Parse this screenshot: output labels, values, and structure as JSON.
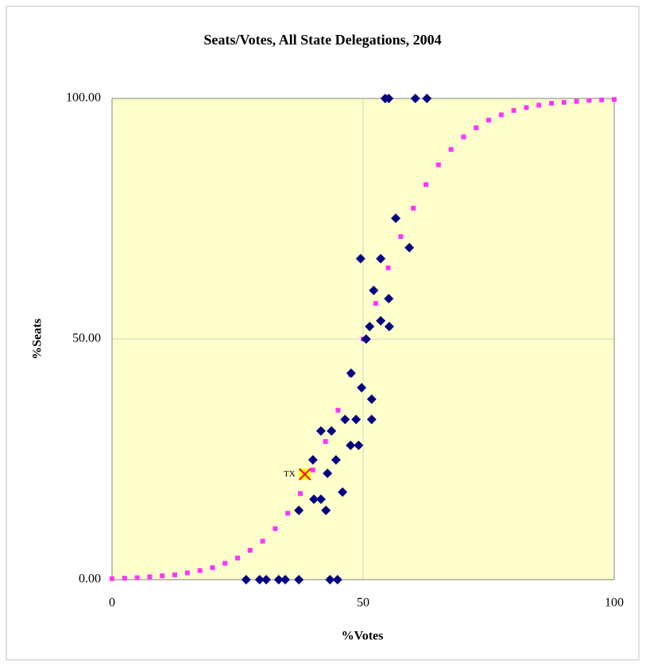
{
  "chart_data": {
    "type": "scatter",
    "title": "Seats/Votes, All State Delegations, 2004",
    "x_label": "%Votes",
    "y_label": "%Seats",
    "xlim": [
      0,
      100
    ],
    "ylim": [
      0,
      100
    ],
    "xticks": [
      0,
      50,
      100
    ],
    "yticks": [
      {
        "value": 0,
        "label": "0.00"
      },
      {
        "value": 50,
        "label": "50.00"
      },
      {
        "value": 100,
        "label": "100.00"
      }
    ],
    "grid": true,
    "background": "#ffffcc",
    "series": [
      {
        "color": "#ff33ff",
        "marker": "square",
        "x": [
          0,
          2.5,
          5,
          7.5,
          10,
          12.5,
          15,
          17.5,
          20,
          22.5,
          25,
          27.5,
          30,
          32.5,
          35,
          37.5,
          40,
          42.5,
          45,
          47.5,
          50,
          52.5,
          55,
          57.5,
          60,
          62.5,
          65,
          67.5,
          70,
          72.5,
          75,
          77.5,
          80,
          82.5,
          85,
          87.5,
          90,
          92.5,
          95,
          97.5,
          100
        ],
        "values": [
          0.2,
          0.3,
          0.4,
          0.6,
          0.8,
          1.0,
          1.4,
          1.9,
          2.5,
          3.4,
          4.5,
          6.1,
          8.0,
          10.6,
          13.8,
          17.9,
          22.8,
          28.7,
          35.2,
          42.6,
          50,
          57.4,
          64.8,
          71.3,
          77.2,
          82.1,
          86.2,
          89.4,
          92.0,
          93.9,
          95.5,
          96.6,
          97.5,
          98.1,
          98.6,
          99.0,
          99.2,
          99.4,
          99.6,
          99.7,
          99.8
        ]
      },
      {
        "color": "#000080",
        "marker": "diamond",
        "x": [
          54.4,
          55.1,
          60.4,
          62.7,
          56.5,
          49.5,
          53.5,
          59.2,
          52.1,
          55.1,
          53.5,
          55.2,
          51.3,
          50.6,
          47.6,
          49.7,
          51.7,
          46.4,
          48.6,
          51.7,
          41.6,
          43.7,
          47.5,
          49.1,
          40,
          44.6,
          42.9,
          45.9,
          40.2,
          41.6,
          37.2,
          42.6,
          26.7,
          29.4,
          30.7,
          33.2,
          34.5,
          37.2,
          43.4,
          44.9
        ],
        "values": [
          100,
          100,
          100,
          100,
          75.1,
          66.7,
          66.7,
          69,
          60.1,
          58.4,
          53.8,
          52.6,
          52.6,
          50,
          42.9,
          39.9,
          37.5,
          33.3,
          33.3,
          33.3,
          30.9,
          30.9,
          27.9,
          27.9,
          24.9,
          24.9,
          22.1,
          18.2,
          16.7,
          16.7,
          14.4,
          14.4,
          0,
          0,
          0,
          0,
          0,
          0,
          0,
          0
        ]
      },
      {
        "color": "#ff0000",
        "fill": "#ffff00",
        "marker": "x",
        "label": "TX",
        "x": [
          38.4
        ],
        "values": [
          21.9
        ]
      }
    ]
  }
}
